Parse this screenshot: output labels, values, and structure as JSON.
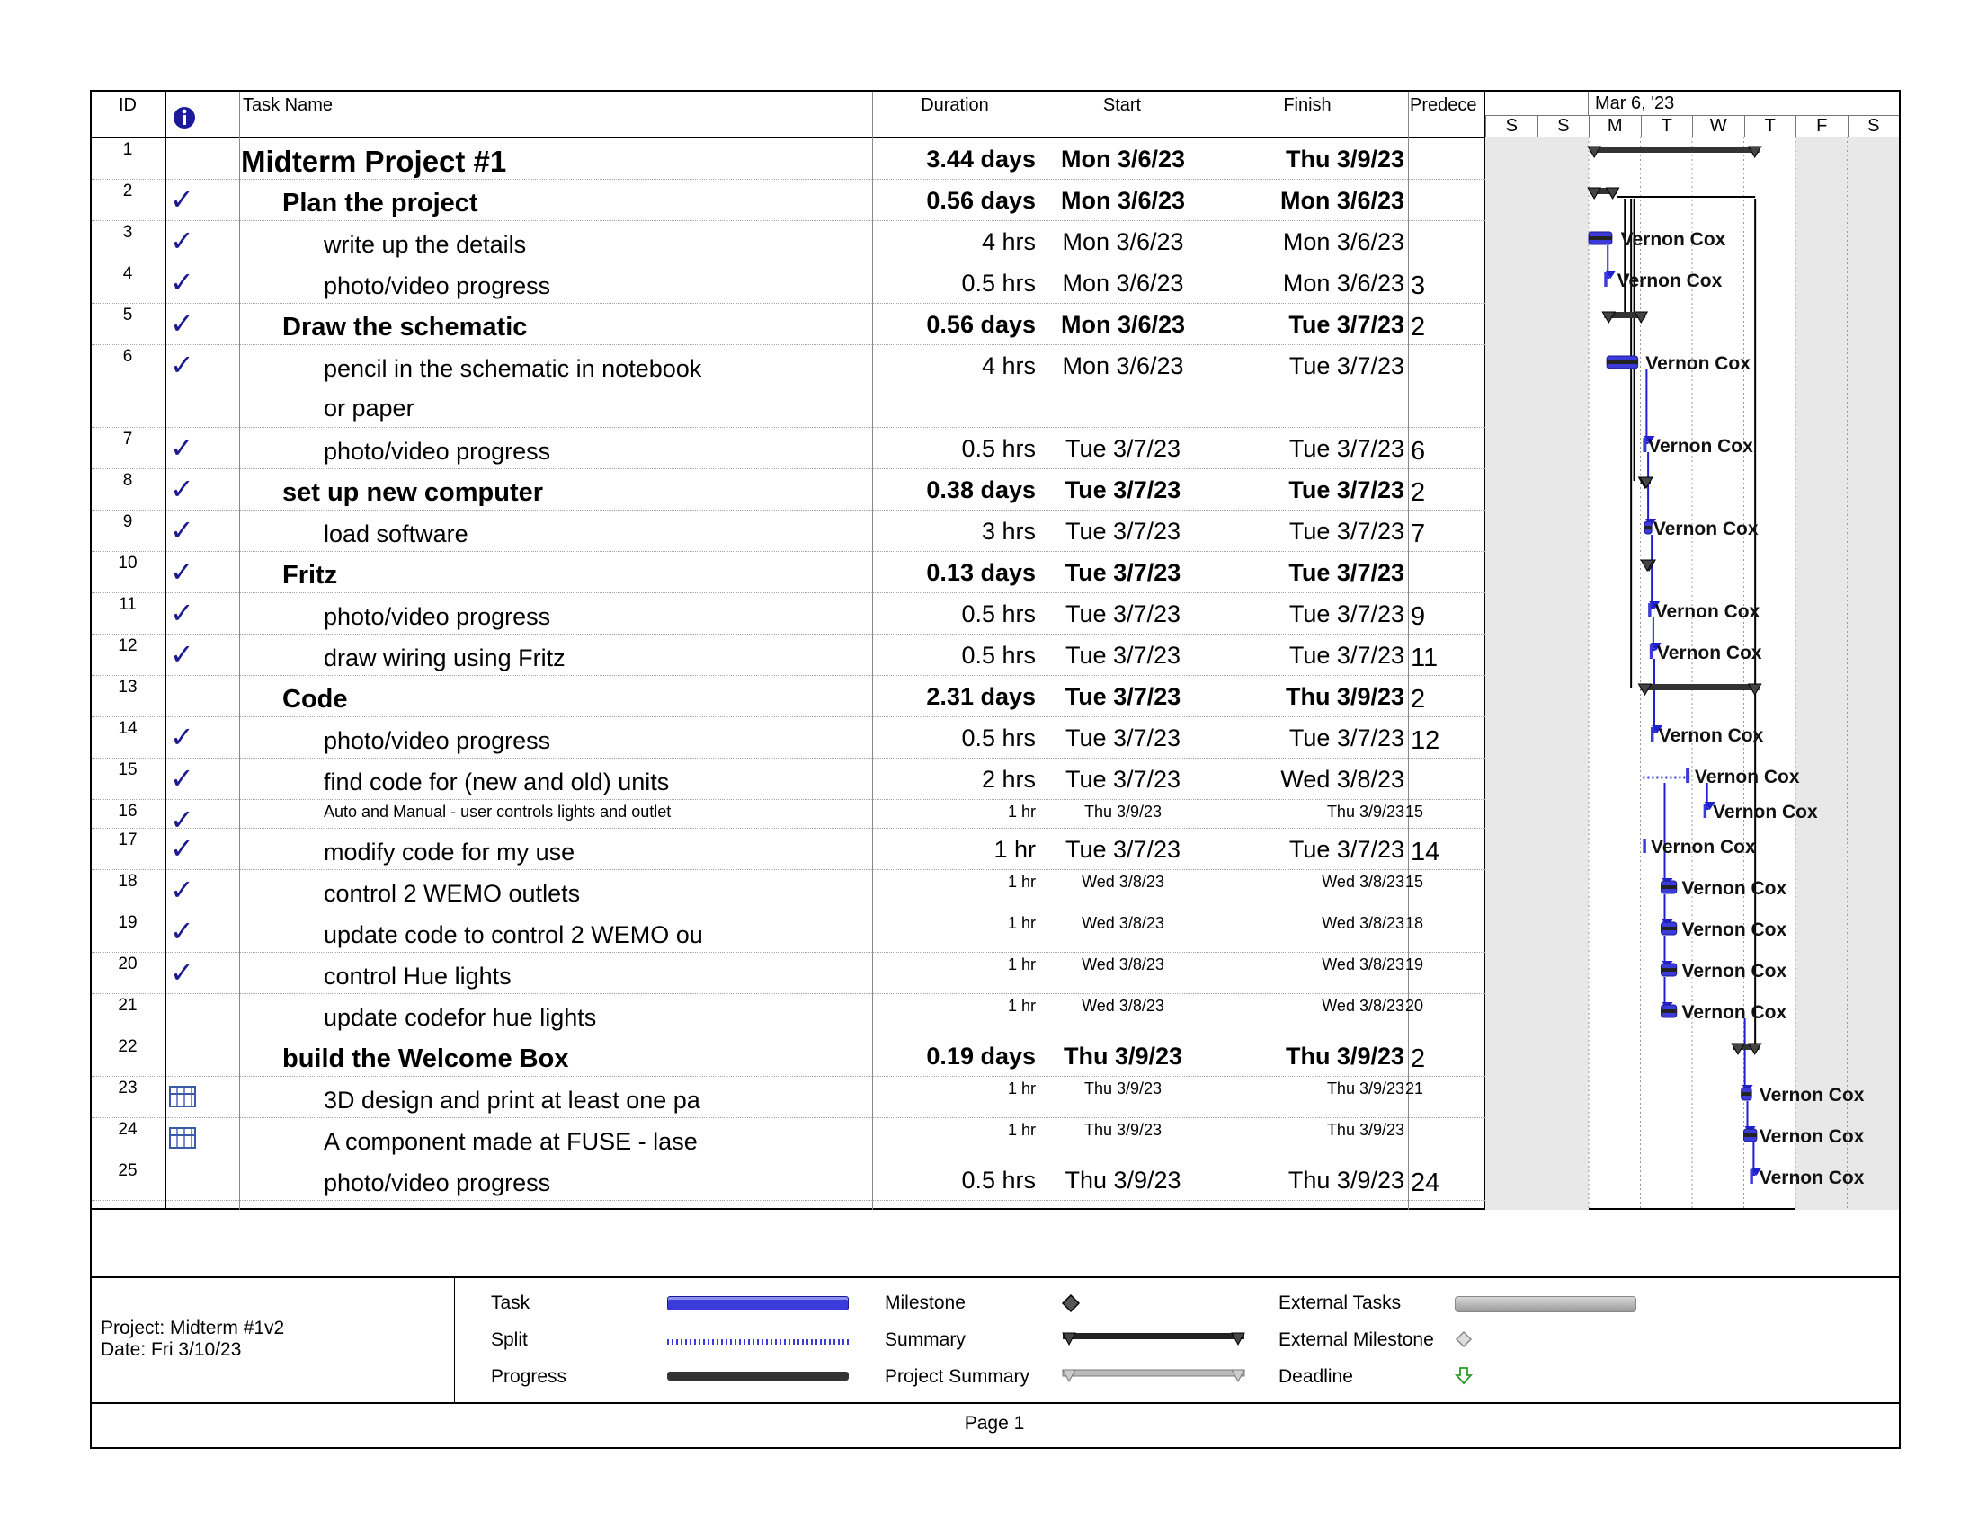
{
  "table": {
    "headers": {
      "id": "ID",
      "task_name": "Task Name",
      "duration": "Duration",
      "start": "Start",
      "finish": "Finish",
      "predecessors": "Predece"
    },
    "rows": [
      {
        "id": "1",
        "ind": "none",
        "name": "Midterm Project #1",
        "duration": "3.44 days",
        "start": "Mon 3/6/23",
        "finish": "Thu 3/9/23",
        "pred": "",
        "level": 0,
        "bold": true,
        "size": "big"
      },
      {
        "id": "2",
        "ind": "check",
        "name": "Plan the project",
        "duration": "0.56 days",
        "start": "Mon 3/6/23",
        "finish": "Mon 3/6/23",
        "pred": "",
        "level": 1,
        "bold": true,
        "size": "mid"
      },
      {
        "id": "3",
        "ind": "check",
        "name": "write up the details",
        "duration": "4 hrs",
        "start": "Mon 3/6/23",
        "finish": "Mon 3/6/23",
        "pred": "",
        "level": 2,
        "bold": false,
        "size": "reg"
      },
      {
        "id": "4",
        "ind": "check",
        "name": "photo/video progress",
        "duration": "0.5 hrs",
        "start": "Mon 3/6/23",
        "finish": "Mon 3/6/23",
        "pred": "3",
        "level": 2,
        "bold": false,
        "size": "reg"
      },
      {
        "id": "5",
        "ind": "check",
        "name": "Draw the schematic",
        "duration": "0.56 days",
        "start": "Mon 3/6/23",
        "finish": "Tue 3/7/23",
        "pred": "2",
        "level": 1,
        "bold": true,
        "size": "mid"
      },
      {
        "id": "6",
        "ind": "check",
        "name": "pencil in the schematic in notebook or paper",
        "duration": "4 hrs",
        "start": "Mon 3/6/23",
        "finish": "Tue 3/7/23",
        "pred": "",
        "level": 2,
        "bold": false,
        "size": "reg",
        "tall": true
      },
      {
        "id": "7",
        "ind": "check",
        "name": "photo/video progress",
        "duration": "0.5 hrs",
        "start": "Tue 3/7/23",
        "finish": "Tue 3/7/23",
        "pred": "6",
        "level": 2,
        "bold": false,
        "size": "reg"
      },
      {
        "id": "8",
        "ind": "check",
        "name": "set up new computer",
        "duration": "0.38 days",
        "start": "Tue 3/7/23",
        "finish": "Tue 3/7/23",
        "pred": "2",
        "level": 1,
        "bold": true,
        "size": "mid"
      },
      {
        "id": "9",
        "ind": "check",
        "name": "load software",
        "duration": "3 hrs",
        "start": "Tue 3/7/23",
        "finish": "Tue 3/7/23",
        "pred": "7",
        "level": 2,
        "bold": false,
        "size": "reg"
      },
      {
        "id": "10",
        "ind": "check",
        "name": "Fritz",
        "duration": "0.13 days",
        "start": "Tue 3/7/23",
        "finish": "Tue 3/7/23",
        "pred": "",
        "level": 1,
        "bold": true,
        "size": "mid"
      },
      {
        "id": "11",
        "ind": "check",
        "name": "photo/video progress",
        "duration": "0.5 hrs",
        "start": "Tue 3/7/23",
        "finish": "Tue 3/7/23",
        "pred": "9",
        "level": 2,
        "bold": false,
        "size": "reg"
      },
      {
        "id": "12",
        "ind": "check",
        "name": "draw wiring using Fritz",
        "duration": "0.5 hrs",
        "start": "Tue 3/7/23",
        "finish": "Tue 3/7/23",
        "pred": "11",
        "level": 2,
        "bold": false,
        "size": "reg"
      },
      {
        "id": "13",
        "ind": "none",
        "name": "Code",
        "duration": "2.31 days",
        "start": "Tue 3/7/23",
        "finish": "Thu 3/9/23",
        "pred": "2",
        "level": 1,
        "bold": true,
        "size": "mid"
      },
      {
        "id": "14",
        "ind": "check",
        "name": "photo/video progress",
        "duration": "0.5 hrs",
        "start": "Tue 3/7/23",
        "finish": "Tue 3/7/23",
        "pred": "12",
        "level": 2,
        "bold": false,
        "size": "reg"
      },
      {
        "id": "15",
        "ind": "check",
        "name": "find code for (new and old) units",
        "duration": "2 hrs",
        "start": "Tue 3/7/23",
        "finish": "Wed 3/8/23",
        "pred": "",
        "level": 2,
        "bold": false,
        "size": "reg"
      },
      {
        "id": "16",
        "ind": "check",
        "name": "Auto and Manual - user controls lights and outlet",
        "duration": "1 hr",
        "start": "Thu 3/9/23",
        "finish": "Thu 3/9/23",
        "pred": "15",
        "level": 2,
        "bold": false,
        "size": "small",
        "short": true
      },
      {
        "id": "17",
        "ind": "check",
        "name": "modify code for my use",
        "duration": "1 hr",
        "start": "Tue 3/7/23",
        "finish": "Tue 3/7/23",
        "pred": "14",
        "level": 2,
        "bold": false,
        "size": "reg"
      },
      {
        "id": "18",
        "ind": "check",
        "name": "control 2 WEMO outlets",
        "duration": "1 hr",
        "start": "Wed 3/8/23",
        "finish": "Wed 3/8/23",
        "pred": "15",
        "level": 2,
        "bold": false,
        "size": "reg",
        "small_vals": true
      },
      {
        "id": "19",
        "ind": "check",
        "name": "update code to control 2 WEMO ou",
        "duration": "1 hr",
        "start": "Wed 3/8/23",
        "finish": "Wed 3/8/23",
        "pred": "18",
        "level": 2,
        "bold": false,
        "size": "reg",
        "small_vals": true
      },
      {
        "id": "20",
        "ind": "check",
        "name": "control Hue lights",
        "duration": "1 hr",
        "start": "Wed 3/8/23",
        "finish": "Wed 3/8/23",
        "pred": "19",
        "level": 2,
        "bold": false,
        "size": "reg",
        "small_vals": true
      },
      {
        "id": "21",
        "ind": "none",
        "name": "update codefor hue lights",
        "duration": "1 hr",
        "start": "Wed 3/8/23",
        "finish": "Wed 3/8/23",
        "pred": "20",
        "level": 2,
        "bold": false,
        "size": "reg",
        "small_vals": true
      },
      {
        "id": "22",
        "ind": "none",
        "name": "build the Welcome Box",
        "duration": "0.19 days",
        "start": "Thu 3/9/23",
        "finish": "Thu 3/9/23",
        "pred": "2",
        "level": 1,
        "bold": true,
        "size": "mid"
      },
      {
        "id": "23",
        "ind": "calendar",
        "name": "3D design and print at least one pa",
        "duration": "1 hr",
        "start": "Thu 3/9/23",
        "finish": "Thu 3/9/23",
        "pred": "21",
        "level": 2,
        "bold": false,
        "size": "reg",
        "small_vals": true
      },
      {
        "id": "24",
        "ind": "calendar",
        "name": "A component made at FUSE - lase",
        "duration": "1 hr",
        "start": "Thu 3/9/23",
        "finish": "Thu 3/9/23",
        "pred": "",
        "level": 2,
        "bold": false,
        "size": "reg",
        "small_vals": true
      },
      {
        "id": "25",
        "ind": "none",
        "name": "photo/video progress",
        "duration": "0.5 hrs",
        "start": "Thu 3/9/23",
        "finish": "Thu 3/9/23",
        "pred": "24",
        "level": 2,
        "bold": false,
        "size": "reg"
      }
    ]
  },
  "gantt": {
    "week_label": "Mar 6, '23",
    "days": [
      "S",
      "S",
      "M",
      "T",
      "W",
      "T",
      "F",
      "S"
    ],
    "resource": "Vernon Cox",
    "bar_color": "#3b3bd9",
    "summary_color": "#333333",
    "link_blue": "#2020d0",
    "shade_color": "#e8e8e8"
  },
  "footer": {
    "project": "Project: Midterm #1v2",
    "date": "Date: Fri 3/10/23",
    "page": "Page 1",
    "legend": {
      "task": "Task",
      "split": "Split",
      "progress": "Progress",
      "milestone": "Milestone",
      "summary": "Summary",
      "project_summary": "Project Summary",
      "external_tasks": "External Tasks",
      "external_milestone": "External Milestone",
      "deadline": "Deadline"
    }
  }
}
